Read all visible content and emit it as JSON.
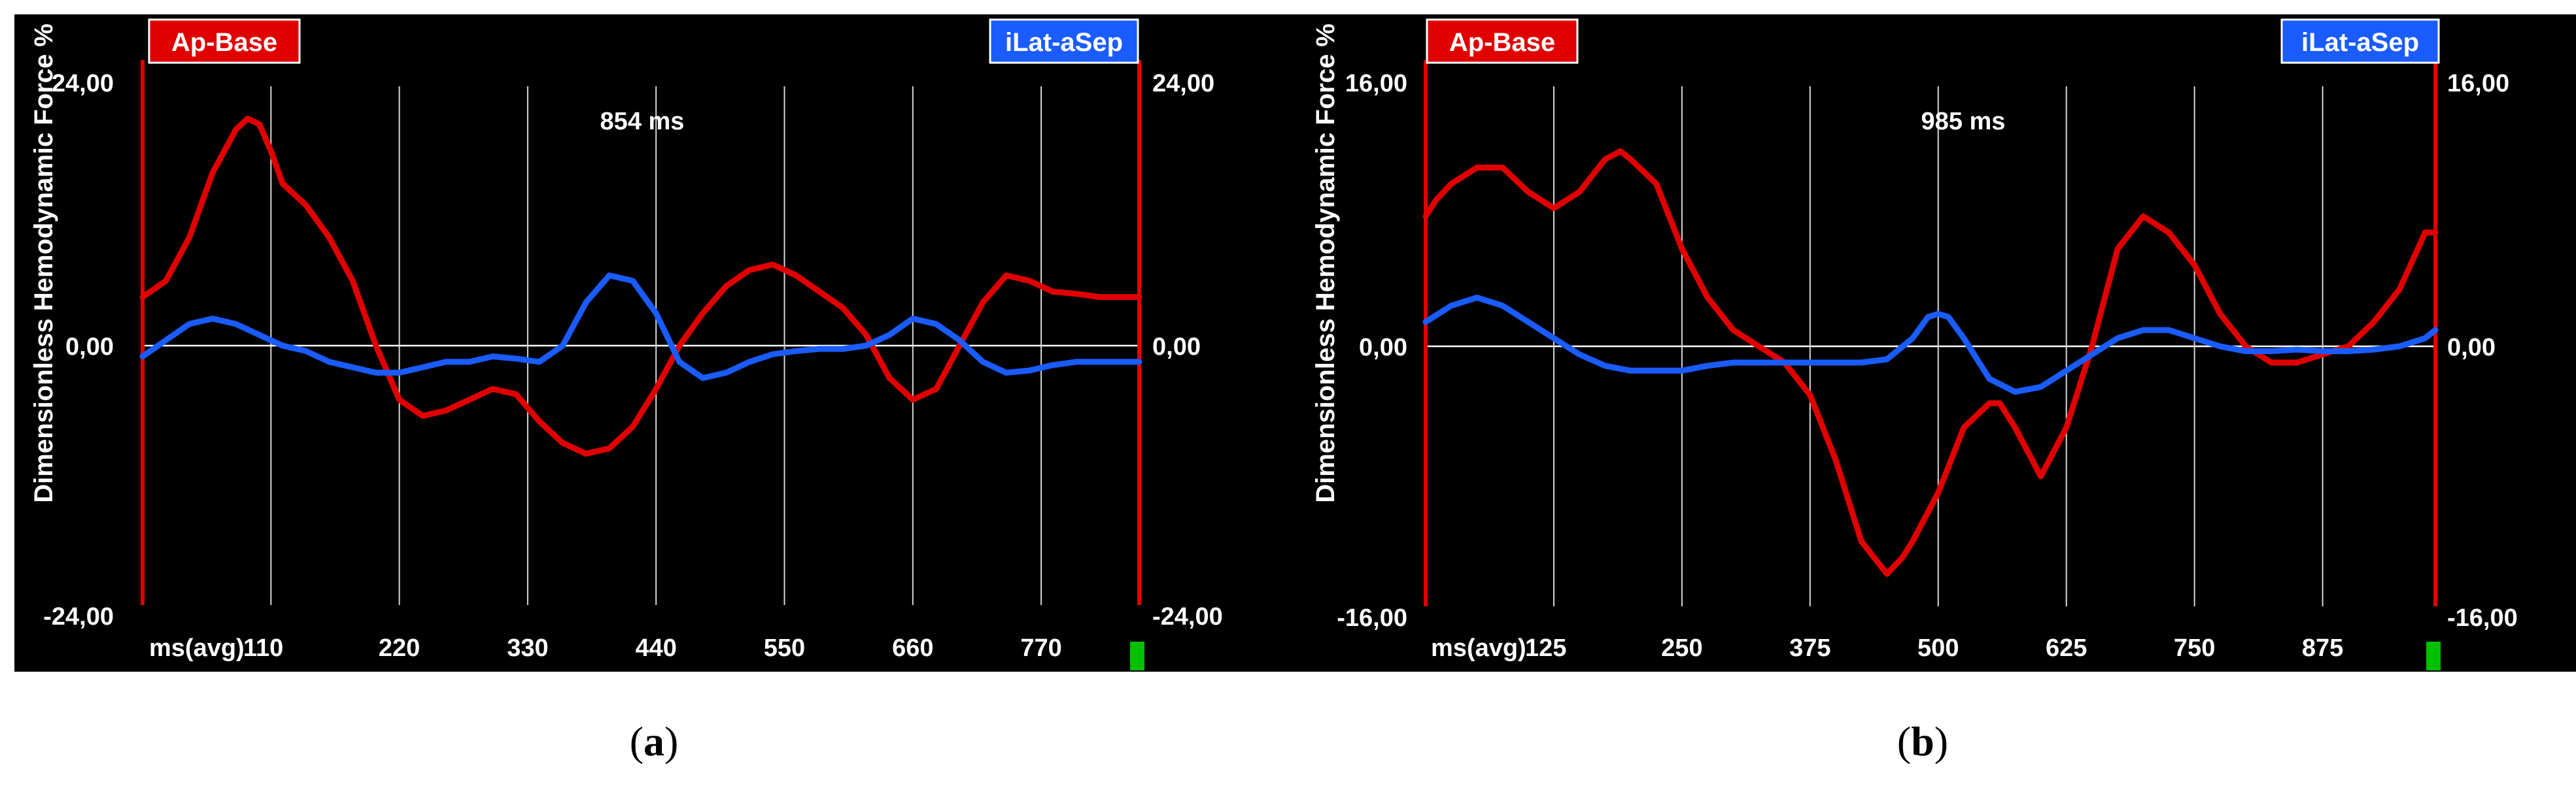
{
  "captions": [
    "a",
    "b"
  ],
  "chart_data": [
    {
      "type": "line",
      "ylabel": "Dimensionless Hemodynamic Force %",
      "duration_label": "854 ms",
      "xlabel_prefix": "ms(avg)",
      "xticks": [
        110,
        220,
        330,
        440,
        550,
        660,
        770
      ],
      "xlim": [
        0,
        854
      ],
      "ylim": [
        -24,
        24
      ],
      "yticks_left": [
        "24,00",
        "0,00",
        "-24,00"
      ],
      "yticks_right": [
        "24,00",
        "0,00",
        "-24,00"
      ],
      "grid": true,
      "colors": {
        "ap_base": "#e00000",
        "ilat_asep": "#1a5cff",
        "grid": "#d8d8d8",
        "axis": "#e00000"
      },
      "series": [
        {
          "name": "Ap-Base",
          "x": [
            0,
            20,
            40,
            60,
            80,
            90,
            100,
            110,
            120,
            140,
            160,
            180,
            200,
            220,
            240,
            260,
            280,
            300,
            320,
            340,
            360,
            380,
            400,
            420,
            440,
            460,
            480,
            500,
            520,
            540,
            560,
            580,
            600,
            620,
            640,
            660,
            680,
            700,
            720,
            740,
            760,
            780,
            800,
            820,
            840,
            854
          ],
          "y": [
            4.5,
            6,
            10,
            16,
            20,
            21,
            20.5,
            18,
            15,
            13,
            10,
            6,
            0,
            -5,
            -6.5,
            -6,
            -5,
            -4,
            -4.5,
            -7,
            -9,
            -10,
            -9.5,
            -7.5,
            -4,
            0,
            3,
            5.5,
            7,
            7.5,
            6.5,
            5,
            3.5,
            1,
            -3,
            -5,
            -4,
            0,
            4,
            6.5,
            6,
            5,
            4.8,
            4.5,
            4.5,
            4.5
          ]
        },
        {
          "name": "iLat-aSep",
          "x": [
            0,
            20,
            40,
            60,
            80,
            100,
            120,
            140,
            160,
            180,
            200,
            220,
            240,
            260,
            280,
            300,
            320,
            340,
            360,
            380,
            400,
            420,
            440,
            460,
            480,
            500,
            520,
            540,
            560,
            580,
            600,
            620,
            640,
            660,
            680,
            700,
            720,
            740,
            760,
            780,
            800,
            820,
            840,
            854
          ],
          "y": [
            -1,
            0.5,
            2,
            2.5,
            2,
            1,
            0,
            -0.5,
            -1.5,
            -2,
            -2.5,
            -2.5,
            -2,
            -1.5,
            -1.5,
            -1,
            -1.2,
            -1.5,
            0,
            4,
            6.5,
            6,
            3,
            -1.5,
            -3,
            -2.5,
            -1.5,
            -0.8,
            -0.5,
            -0.3,
            -0.3,
            0,
            1,
            2.5,
            2,
            0.5,
            -1.5,
            -2.5,
            -2.3,
            -1.8,
            -1.5,
            -1.5,
            -1.5,
            -1.5
          ]
        }
      ]
    },
    {
      "type": "line",
      "ylabel": "Dimensionless Hemodynamic Force %",
      "duration_label": "985 ms",
      "xlabel_prefix": "ms(avg)",
      "xticks": [
        125,
        250,
        375,
        500,
        625,
        750,
        875
      ],
      "xlim": [
        0,
        985
      ],
      "ylim": [
        -16,
        16
      ],
      "yticks_left": [
        "16,00",
        "0,00",
        "-16,00"
      ],
      "yticks_right": [
        "16,00",
        "0,00",
        "-16,00"
      ],
      "grid": true,
      "colors": {
        "ap_base": "#e00000",
        "ilat_asep": "#1a5cff",
        "grid": "#d8d8d8",
        "axis": "#e00000"
      },
      "series": [
        {
          "name": "Ap-Base",
          "x": [
            0,
            10,
            25,
            50,
            75,
            100,
            125,
            150,
            175,
            190,
            200,
            225,
            250,
            275,
            300,
            325,
            350,
            375,
            400,
            425,
            450,
            465,
            475,
            500,
            525,
            550,
            560,
            575,
            600,
            625,
            650,
            675,
            700,
            725,
            750,
            775,
            800,
            825,
            850,
            875,
            900,
            925,
            950,
            975,
            985
          ],
          "y": [
            8,
            9,
            10,
            11,
            11,
            9.5,
            8.5,
            9.5,
            11.5,
            12,
            11.5,
            10,
            6,
            3,
            1,
            0,
            -1,
            -3,
            -7,
            -12,
            -14,
            -13,
            -12,
            -9,
            -5,
            -3.5,
            -3.5,
            -5,
            -8,
            -5,
            0,
            6,
            8,
            7,
            5,
            2,
            0,
            -1,
            -1,
            -0.5,
            0,
            1.5,
            3.5,
            7,
            7
          ]
        },
        {
          "name": "iLat-aSep",
          "x": [
            0,
            25,
            50,
            75,
            100,
            125,
            150,
            175,
            200,
            225,
            250,
            275,
            300,
            325,
            350,
            375,
            400,
            425,
            450,
            475,
            490,
            500,
            510,
            525,
            550,
            575,
            600,
            625,
            650,
            675,
            700,
            725,
            750,
            775,
            800,
            825,
            850,
            875,
            900,
            925,
            950,
            975,
            985
          ],
          "y": [
            1.5,
            2.5,
            3,
            2.5,
            1.5,
            0.5,
            -0.5,
            -1.2,
            -1.5,
            -1.5,
            -1.5,
            -1.2,
            -1,
            -1,
            -1,
            -1,
            -1,
            -1,
            -0.8,
            0.5,
            1.8,
            2,
            1.8,
            0.5,
            -2,
            -2.8,
            -2.5,
            -1.5,
            -0.5,
            0.5,
            1,
            1,
            0.5,
            0,
            -0.3,
            -0.3,
            -0.2,
            -0.3,
            -0.3,
            -0.2,
            0,
            0.5,
            1
          ]
        }
      ]
    }
  ]
}
